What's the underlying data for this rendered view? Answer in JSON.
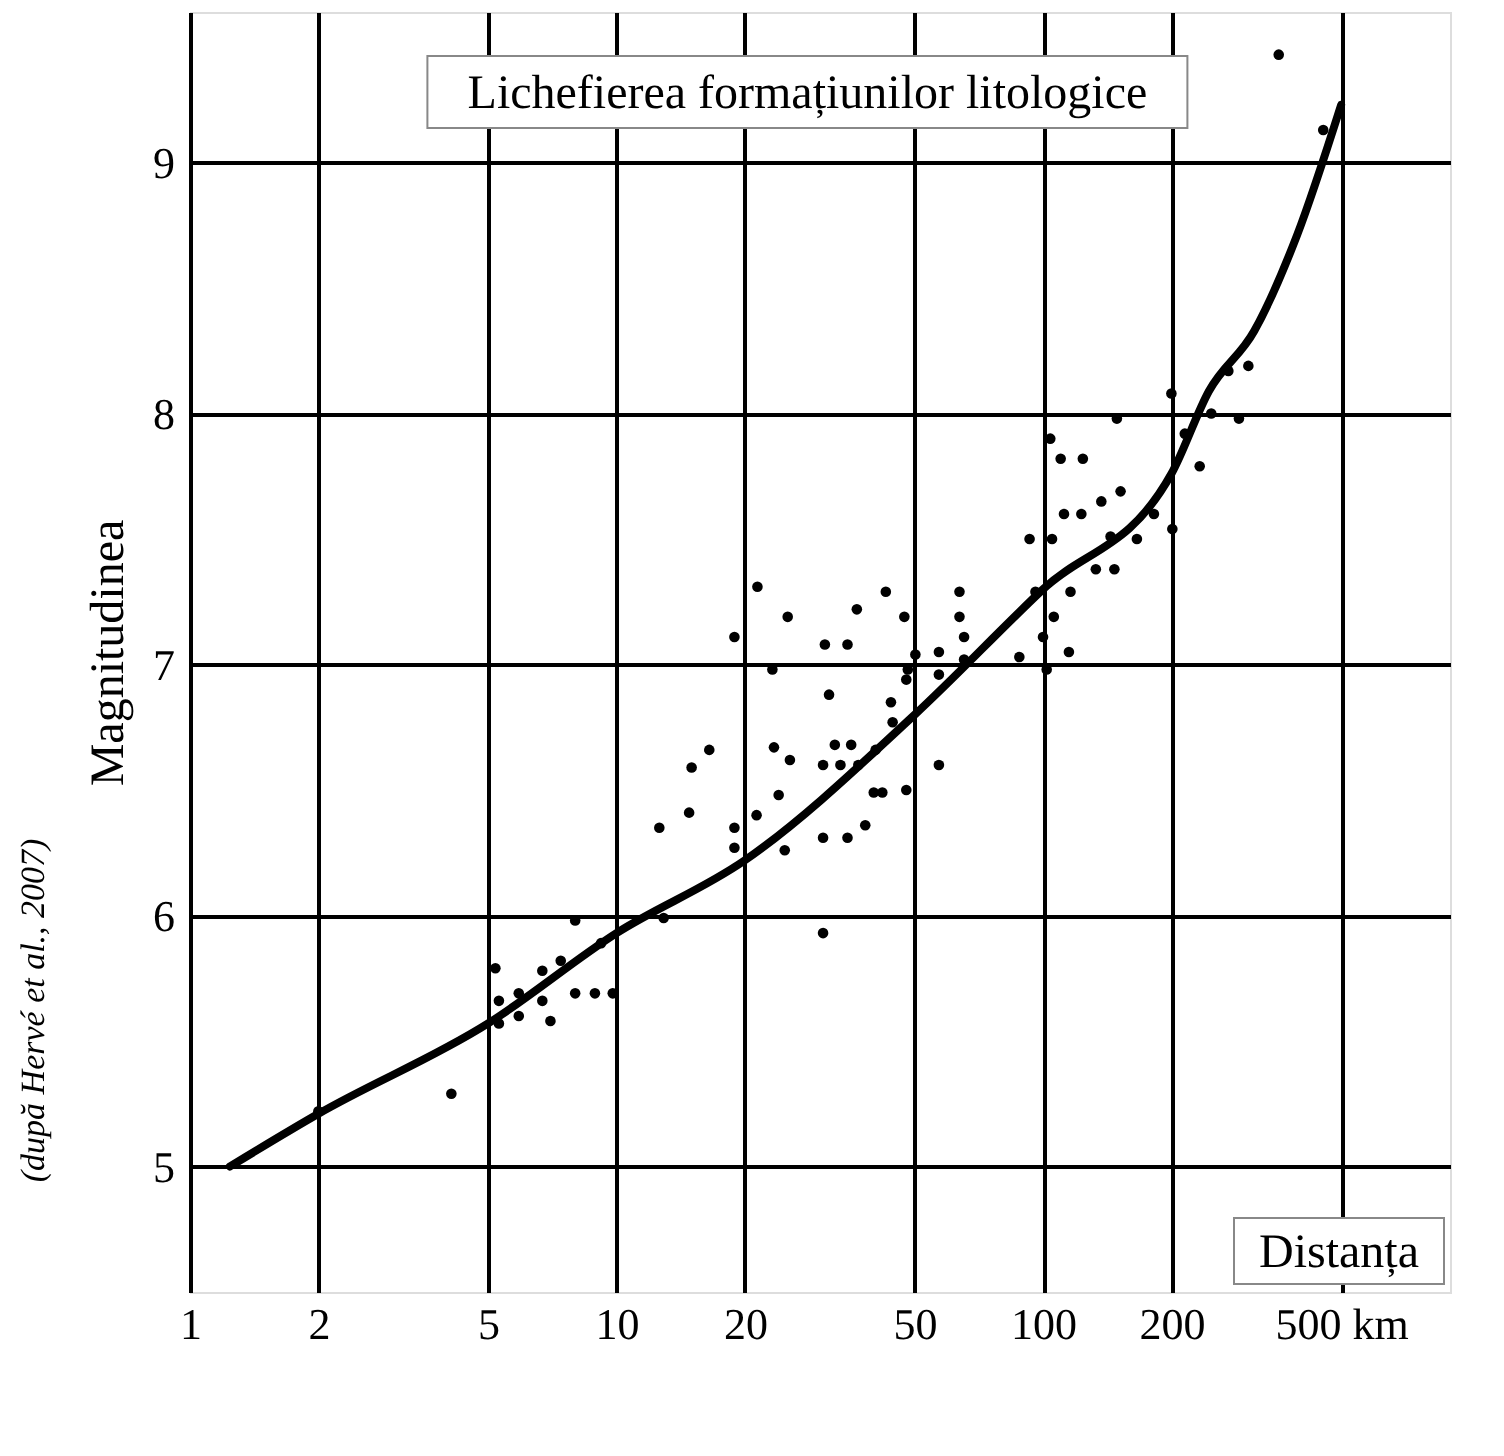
{
  "chart_data": {
    "type": "scatter",
    "title": "Lichefierea formațiunilor litologice",
    "xlabel": "Distanța",
    "ylabel": "Magnitudinea",
    "annotations": [
      "(după Hervé et al., 2007)"
    ],
    "log": "x",
    "grid": true,
    "marker": "circle",
    "line_style": "solid",
    "xlim": [
      1,
      900
    ],
    "xticks": [
      1,
      2,
      5,
      10,
      20,
      50,
      100,
      200,
      {
        "value": 500,
        "label": "500 km"
      }
    ],
    "ylim": [
      4.5,
      9.6
    ],
    "yticks": [
      5,
      6,
      7,
      8,
      9
    ],
    "series": [
      {
        "color": "#000000",
        "x": [
          2,
          4.1,
          5.2,
          5.3,
          5.3,
          5.9,
          5.9,
          6.7,
          6.7,
          7.0,
          7.4,
          8.0,
          8.0,
          8.9,
          9.2,
          9.8,
          12.9,
          12.6,
          14.8,
          15.0,
          16.5,
          18.9,
          18.9,
          18.9,
          21.3,
          21.4,
          23.2,
          23.4,
          24,
          24.8,
          25.2,
          25.5,
          30.8,
          31.5,
          30.5,
          30.5,
          30.5,
          32.5,
          33.5,
          35.5,
          34.8,
          36.6,
          34.8,
          38.3,
          36.9,
          40.1,
          42,
          40.5,
          42.8,
          44,
          44.4,
          47.3,
          47.8,
          47.8,
          50.2,
          57,
          57,
          57,
          48.2,
          63.7,
          63.7,
          65.3,
          65.3,
          104,
          110,
          124,
          93,
          105,
          112,
          123,
          137,
          152,
          144,
          166,
          133,
          147,
          116,
          96,
          106,
          100,
          115,
          102,
          88,
          182,
          201,
          149,
          200,
          215,
          233,
          248,
          272,
          288,
          303,
          357,
          454
        ],
        "values": [
          5.22,
          5.29,
          5.79,
          5.66,
          5.57,
          5.69,
          5.6,
          5.78,
          5.66,
          5.58,
          5.82,
          5.98,
          5.69,
          5.69,
          5.89,
          5.69,
          5.99,
          6.35,
          6.41,
          6.59,
          6.66,
          7.11,
          6.35,
          6.27,
          6.4,
          7.31,
          6.98,
          6.67,
          6.48,
          6.26,
          7.19,
          6.62,
          7.08,
          6.88,
          6.6,
          6.31,
          5.93,
          6.68,
          6.6,
          6.68,
          7.08,
          7.22,
          6.31,
          6.36,
          6.6,
          6.49,
          6.49,
          6.66,
          7.29,
          6.85,
          6.77,
          7.19,
          6.94,
          6.5,
          7.04,
          7.05,
          6.6,
          6.96,
          6.98,
          7.29,
          7.19,
          7.11,
          7.02,
          7.9,
          7.82,
          7.82,
          7.5,
          7.5,
          7.6,
          7.6,
          7.65,
          7.69,
          7.51,
          7.5,
          7.38,
          7.38,
          7.29,
          7.29,
          7.19,
          7.11,
          7.05,
          6.98,
          7.03,
          7.6,
          7.54,
          7.98,
          8.08,
          7.92,
          7.79,
          8.0,
          8.17,
          7.98,
          8.19,
          9.43,
          9.13
        ]
      },
      {
        "type": "line",
        "marker": "none",
        "color": "#000000",
        "x": [
          1.24,
          2,
          5,
          10,
          20,
          50,
          100,
          200,
          245,
          313,
          394,
          500
        ],
        "values": [
          5.0,
          5.21,
          5.57,
          5.93,
          6.22,
          6.8,
          7.3,
          7.76,
          8.09,
          8.33,
          8.71,
          9.23
        ]
      }
    ]
  }
}
